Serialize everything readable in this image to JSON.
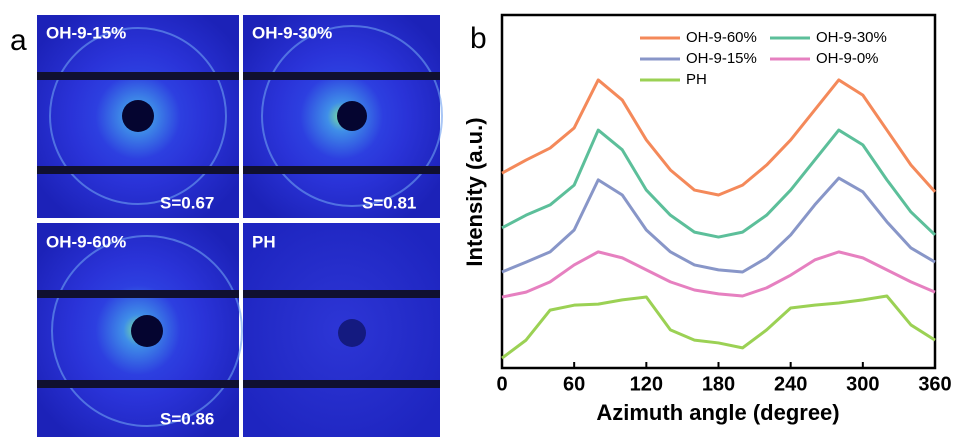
{
  "panel_a": {
    "label": "a",
    "images": [
      {
        "title": "OH-9-15%",
        "s_label": "S=0.67"
      },
      {
        "title": "OH-9-30%",
        "s_label": "S=0.81"
      },
      {
        "title": "OH-9-60%",
        "s_label": "S=0.86"
      },
      {
        "title": "PH"
      }
    ]
  },
  "chart_data": {
    "type": "line",
    "panel_label": "b",
    "x_label": "Azimuth angle (degree)",
    "y_label": "Intensity (a.u.)",
    "x": [
      0,
      20,
      40,
      60,
      80,
      100,
      120,
      140,
      160,
      180,
      200,
      220,
      240,
      260,
      280,
      300,
      320,
      340,
      360
    ],
    "xlim": [
      0,
      360
    ],
    "xticks": [
      0,
      60,
      120,
      180,
      240,
      300,
      360
    ],
    "ylim": [
      0,
      100
    ],
    "series": [
      {
        "name": "OH-9-60%",
        "color": "#f4895a",
        "values": [
          55.2,
          58.9,
          62.3,
          68.0,
          81.6,
          75.9,
          64.6,
          56.1,
          50.4,
          49.0,
          51.8,
          57.5,
          64.6,
          73.1,
          81.6,
          77.3,
          67.4,
          57.5,
          49.9
        ]
      },
      {
        "name": "OH-9-30%",
        "color": "#5cbf9a",
        "values": [
          39.7,
          43.3,
          46.2,
          51.8,
          67.4,
          61.8,
          50.4,
          43.3,
          38.5,
          37.1,
          38.5,
          43.3,
          50.4,
          58.9,
          67.4,
          63.2,
          53.3,
          44.2,
          37.7
        ]
      },
      {
        "name": "OH-9-15%",
        "color": "#8896c8",
        "values": [
          27.2,
          30.0,
          32.9,
          39.1,
          53.3,
          49.0,
          39.1,
          32.9,
          29.2,
          27.8,
          27.2,
          31.2,
          37.7,
          46.2,
          53.8,
          49.9,
          41.4,
          34.0,
          30.0
        ]
      },
      {
        "name": "OH-9-0%",
        "color": "#e680c0",
        "values": [
          20.1,
          21.5,
          24.4,
          29.2,
          32.9,
          31.2,
          27.8,
          24.4,
          22.1,
          21.0,
          20.4,
          22.7,
          26.3,
          30.6,
          32.9,
          31.2,
          27.8,
          24.4,
          21.5
        ]
      },
      {
        "name": "PH",
        "color": "#9bd154",
        "values": [
          2.8,
          7.9,
          16.4,
          17.8,
          18.1,
          19.3,
          20.1,
          10.8,
          7.9,
          7.1,
          5.7,
          10.8,
          17.0,
          17.8,
          18.4,
          19.3,
          20.4,
          12.2,
          7.9
        ]
      }
    ]
  }
}
